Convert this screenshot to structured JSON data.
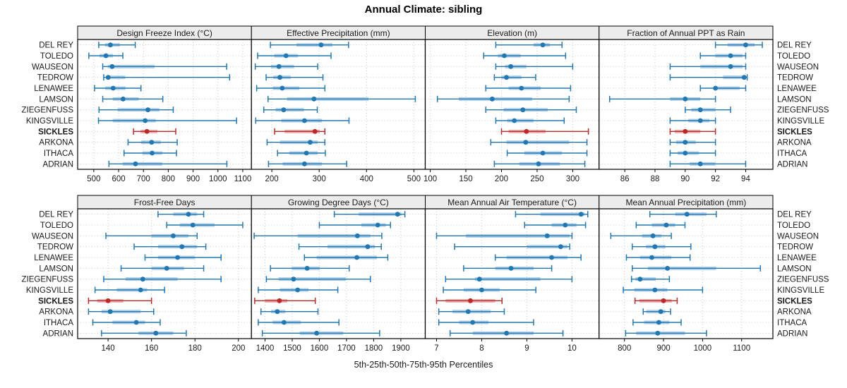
{
  "chart_data": {
    "type": "scatter",
    "subtype": "percentile-interval-plot",
    "title": "Annual Climate: sibling",
    "caption": "5th-25th-50th-75th-95th Percentiles",
    "legend_position": "none",
    "grid": "dotted",
    "highlight": "SICKLES",
    "colors": {
      "series": "#1F78B4",
      "highlight": "#C02626",
      "strip_bg": "#ECECEC",
      "grid": "#C8C8C8",
      "panel_border": "#000000"
    },
    "categories": [
      "DEL REY",
      "TOLEDO",
      "WAUSEON",
      "TEDROW",
      "LENAWEE",
      "LAMSON",
      "ZIEGENFUSS",
      "KINGSVILLE",
      "SICKLES",
      "ARKONA",
      "ITHACA",
      "ADRIAN"
    ],
    "percentile_labels": [
      "p5",
      "p25",
      "p50",
      "p75",
      "p95"
    ],
    "panels": [
      {
        "title": "Design Freeze Index (°C)",
        "xlim": [
          435,
          1135
        ],
        "ticks": [
          500,
          600,
          700,
          800,
          900,
          1000,
          1100
        ],
        "values": [
          [
            520,
            545,
            567,
            605,
            667
          ],
          [
            480,
            523,
            549,
            577,
            617
          ],
          [
            536,
            556,
            574,
            745,
            1035
          ],
          [
            540,
            549,
            558,
            627,
            1047
          ],
          [
            503,
            546,
            578,
            628,
            690
          ],
          [
            536,
            576,
            618,
            681,
            778
          ],
          [
            521,
            596,
            718,
            764,
            820
          ],
          [
            519,
            576,
            707,
            750,
            1075
          ],
          [
            660,
            688,
            714,
            756,
            830
          ],
          [
            638,
            690,
            733,
            770,
            836
          ],
          [
            622,
            696,
            735,
            776,
            833
          ],
          [
            561,
            616,
            668,
            776,
            1036
          ]
        ]
      },
      {
        "title": "Effective Precipitation (mm)",
        "xlim": [
          157,
          524
        ],
        "ticks": [
          200,
          300,
          400,
          500
        ],
        "values": [
          [
            197,
            252,
            304,
            328,
            362
          ],
          [
            170,
            205,
            230,
            255,
            325
          ],
          [
            165,
            198,
            215,
            247,
            297
          ],
          [
            188,
            203,
            217,
            240,
            308
          ],
          [
            168,
            202,
            222,
            258,
            312
          ],
          [
            192,
            232,
            289,
            404,
            503
          ],
          [
            183,
            208,
            225,
            268,
            296
          ],
          [
            166,
            220,
            269,
            306,
            363
          ],
          [
            206,
            227,
            291,
            301,
            312
          ],
          [
            190,
            217,
            281,
            297,
            312
          ],
          [
            212,
            237,
            273,
            297,
            313
          ],
          [
            193,
            223,
            269,
            306,
            358
          ]
        ]
      },
      {
        "title": "Elevation (m)",
        "xlim": [
          93,
          337
        ],
        "ticks": [
          100,
          150,
          200,
          250,
          300
        ],
        "values": [
          [
            192,
            245,
            258,
            268,
            285
          ],
          [
            175,
            195,
            204,
            227,
            290
          ],
          [
            192,
            205,
            213,
            235,
            300
          ],
          [
            190,
            200,
            207,
            228,
            248
          ],
          [
            178,
            210,
            228,
            255,
            297
          ],
          [
            110,
            140,
            187,
            243,
            295
          ],
          [
            178,
            203,
            230,
            265,
            305
          ],
          [
            192,
            208,
            218,
            245,
            288
          ],
          [
            200,
            210,
            235,
            262,
            322
          ],
          [
            185,
            207,
            234,
            295,
            320
          ],
          [
            208,
            232,
            258,
            285,
            320
          ],
          [
            190,
            225,
            252,
            282,
            317
          ]
        ]
      },
      {
        "title": "Fraction of Annual PPT as Rain",
        "xlim": [
          84.3,
          95.8
        ],
        "ticks": [
          86,
          88,
          90,
          92,
          94
        ],
        "values": [
          [
            92,
            92.8,
            94,
            94.6,
            95.1
          ],
          [
            91,
            92,
            93,
            93.8,
            94
          ],
          [
            89,
            91,
            93,
            93.8,
            94
          ],
          [
            89,
            92.5,
            93.9,
            94,
            94.1
          ],
          [
            91,
            91.9,
            92,
            93.6,
            94
          ],
          [
            85,
            89,
            90,
            91,
            92
          ],
          [
            90,
            90.4,
            91,
            92,
            93
          ],
          [
            89,
            90.2,
            91,
            91.6,
            92
          ],
          [
            89,
            89.3,
            90,
            91,
            92
          ],
          [
            89,
            89.4,
            90,
            90.7,
            92
          ],
          [
            89,
            89.5,
            90,
            90.9,
            92
          ],
          [
            89,
            90.3,
            91,
            92,
            94
          ]
        ]
      },
      {
        "title": "Frost-Free Days",
        "xlim": [
          126,
          206
        ],
        "ticks": [
          140,
          160,
          180,
          200
        ],
        "values": [
          [
            163,
            170,
            177,
            181,
            184
          ],
          [
            167,
            173,
            179,
            189,
            202
          ],
          [
            139,
            160,
            170,
            177,
            181
          ],
          [
            152,
            163,
            174,
            181,
            185
          ],
          [
            157,
            163,
            172,
            180,
            192
          ],
          [
            146,
            160,
            167,
            175,
            184
          ],
          [
            138,
            148,
            156,
            172,
            192
          ],
          [
            134,
            144,
            155,
            158,
            166
          ],
          [
            131,
            135,
            140,
            147,
            160
          ],
          [
            131,
            137,
            141,
            155,
            161
          ],
          [
            133,
            142,
            153,
            157,
            164
          ],
          [
            137,
            154,
            162,
            170,
            176
          ]
        ]
      },
      {
        "title": "Growing Degree Days (°C)",
        "xlim": [
          1350,
          1990
        ],
        "ticks": [
          1400,
          1500,
          1600,
          1700,
          1800,
          1900
        ],
        "values": [
          [
            1655,
            1745,
            1888,
            1902,
            1915
          ],
          [
            1600,
            1755,
            1815,
            1845,
            1862
          ],
          [
            1360,
            1520,
            1740,
            1788,
            1830
          ],
          [
            1525,
            1630,
            1778,
            1805,
            1828
          ],
          [
            1545,
            1590,
            1738,
            1812,
            1852
          ],
          [
            1420,
            1498,
            1555,
            1602,
            1710
          ],
          [
            1405,
            1450,
            1505,
            1698,
            1788
          ],
          [
            1375,
            1455,
            1520,
            1560,
            1668
          ],
          [
            1362,
            1400,
            1453,
            1482,
            1585
          ],
          [
            1385,
            1422,
            1445,
            1475,
            1595
          ],
          [
            1375,
            1428,
            1470,
            1532,
            1672
          ],
          [
            1390,
            1528,
            1590,
            1688,
            1822
          ]
        ]
      },
      {
        "title": "Mean Annual Air Temperature (°C)",
        "xlim": [
          6.75,
          10.6
        ],
        "ticks": [
          7,
          8,
          9,
          10
        ],
        "values": [
          [
            8.75,
            9.3,
            10.2,
            10.28,
            10.35
          ],
          [
            8.95,
            9.55,
            9.85,
            10.1,
            10.3
          ],
          [
            7.0,
            7.65,
            9.45,
            9.95,
            10.0
          ],
          [
            7.4,
            9.0,
            9.75,
            9.9,
            9.95
          ],
          [
            8.3,
            8.55,
            9.55,
            9.9,
            10.2
          ],
          [
            7.6,
            8.3,
            8.65,
            9.15,
            9.55
          ],
          [
            7.2,
            7.85,
            7.95,
            9.3,
            10.0
          ],
          [
            7.15,
            7.6,
            8.0,
            8.4,
            9.2
          ],
          [
            7.0,
            7.2,
            7.75,
            8.3,
            8.45
          ],
          [
            7.05,
            7.35,
            7.7,
            8.2,
            8.5
          ],
          [
            7.05,
            7.5,
            7.8,
            8.15,
            9.15
          ],
          [
            7.3,
            7.8,
            8.55,
            9.15,
            9.8
          ]
        ]
      },
      {
        "title": "Mean Annual Precipitation (mm)",
        "xlim": [
          735,
          1180
        ],
        "ticks": [
          800,
          900,
          1000,
          1100
        ],
        "values": [
          [
            865,
            930,
            960,
            1010,
            1035
          ],
          [
            830,
            870,
            907,
            930,
            955
          ],
          [
            765,
            845,
            873,
            895,
            920
          ],
          [
            820,
            855,
            878,
            905,
            970
          ],
          [
            805,
            840,
            870,
            920,
            968
          ],
          [
            820,
            860,
            910,
            1035,
            1148
          ],
          [
            818,
            828,
            840,
            880,
            915
          ],
          [
            797,
            825,
            878,
            910,
            1000
          ],
          [
            827,
            838,
            900,
            921,
            935
          ],
          [
            848,
            856,
            893,
            905,
            918
          ],
          [
            822,
            850,
            888,
            915,
            945
          ],
          [
            803,
            830,
            885,
            955,
            1010
          ]
        ]
      }
    ]
  }
}
